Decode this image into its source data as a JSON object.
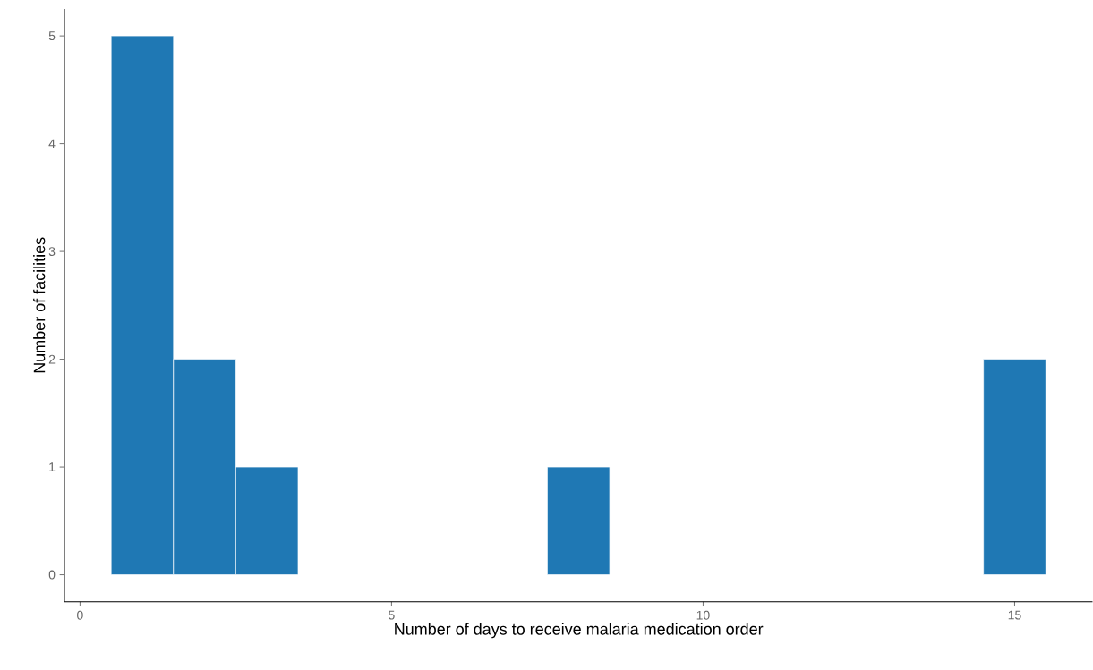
{
  "chart_data": {
    "type": "histogram",
    "xlabel": "Number of days to receive malaria medication order",
    "ylabel": "Number of facilities",
    "bins": [
      0.5,
      1.5,
      2.5,
      3.5,
      4.5,
      5.5,
      6.5,
      7.5,
      8.5,
      9.5,
      10.5,
      11.5,
      12.5,
      13.5,
      14.5,
      15.5
    ],
    "values": [
      5,
      2,
      1,
      0,
      0,
      0,
      0,
      1,
      0,
      0,
      0,
      0,
      0,
      0,
      2
    ],
    "color": "#1f78b4",
    "xlim": [
      -0.25,
      16.25
    ],
    "ylim": [
      -0.25,
      5.25
    ],
    "xticks": [
      0,
      5,
      10,
      15
    ],
    "yticks": [
      0,
      1,
      2,
      3,
      4,
      5
    ],
    "grid": false
  }
}
